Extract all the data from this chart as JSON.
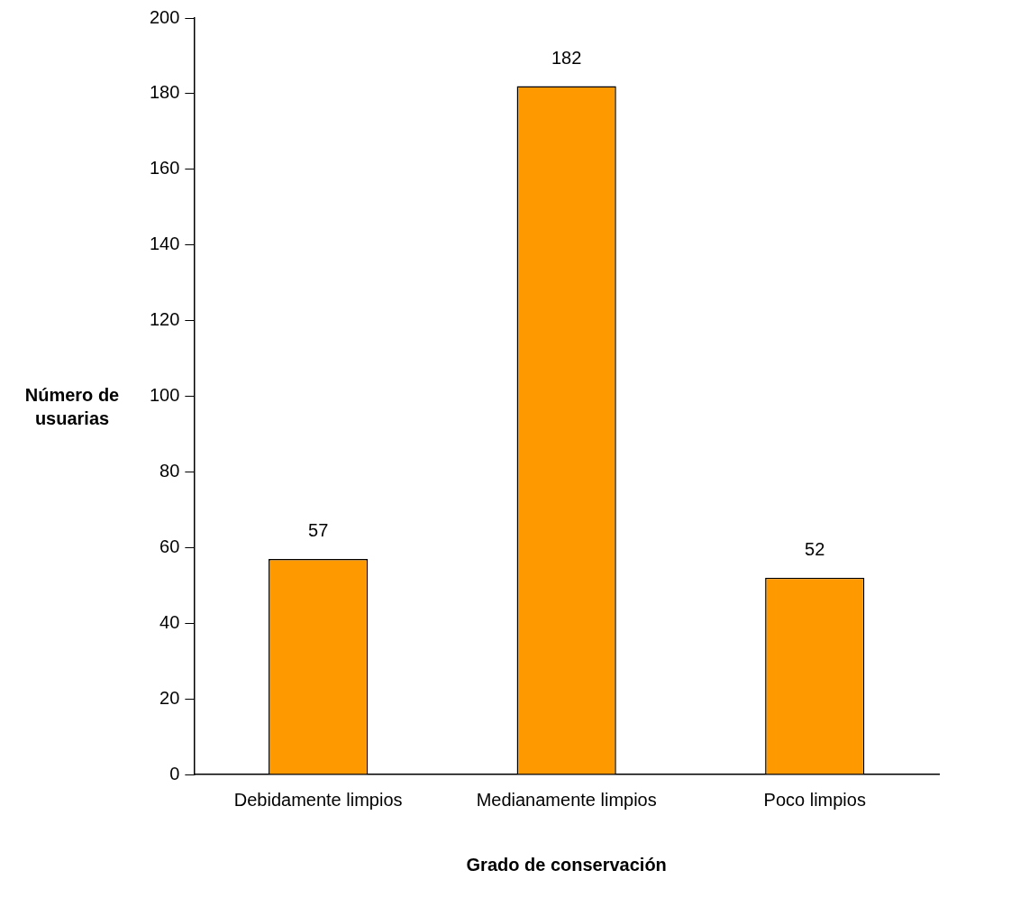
{
  "chart_data": {
    "type": "bar",
    "categories": [
      "Debidamente limpios",
      "Medianamente limpios",
      "Poco limpios"
    ],
    "values": [
      57,
      182,
      52
    ],
    "color": "#ff9900",
    "data_labels": true,
    "xlabel": "Grado de conservación",
    "ylabel": "Número de usuarias",
    "ylim": [
      0,
      200
    ],
    "yticks": [
      0,
      20,
      40,
      60,
      80,
      100,
      120,
      140,
      160,
      180,
      200
    ],
    "grid": false,
    "legend": false
  }
}
